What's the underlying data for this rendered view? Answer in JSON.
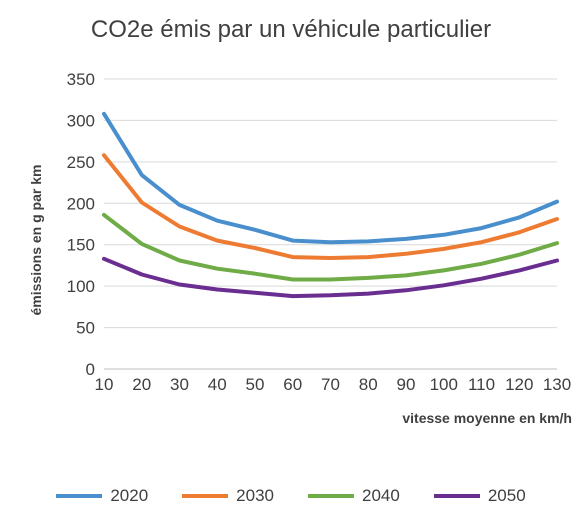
{
  "chart_data": {
    "type": "line",
    "title": "CO2e émis par un véhicule particulier",
    "xlabel": "vitesse moyenne en km/h",
    "ylabel": "émissions en g par km",
    "x": [
      10,
      20,
      30,
      40,
      50,
      60,
      70,
      80,
      90,
      100,
      110,
      120,
      130
    ],
    "xlim": [
      10,
      130
    ],
    "ylim": [
      0,
      350
    ],
    "yticks": [
      0,
      50,
      100,
      150,
      200,
      250,
      300,
      350
    ],
    "grid": true,
    "legend_position": "bottom",
    "series": [
      {
        "name": "2020",
        "color": "#4a8fcd",
        "values": [
          308,
          234,
          198,
          179,
          168,
          155,
          153,
          154,
          157,
          162,
          170,
          183,
          202
        ]
      },
      {
        "name": "2030",
        "color": "#ee7b32",
        "values": [
          258,
          201,
          172,
          155,
          146,
          135,
          134,
          135,
          139,
          145,
          153,
          165,
          181
        ]
      },
      {
        "name": "2040",
        "color": "#6fac47",
        "values": [
          186,
          151,
          131,
          121,
          115,
          108,
          108,
          110,
          113,
          119,
          127,
          138,
          152
        ]
      },
      {
        "name": "2050",
        "color": "#6a2e91",
        "values": [
          133,
          114,
          102,
          96,
          92,
          88,
          89,
          91,
          95,
          101,
          109,
          119,
          131
        ]
      }
    ]
  }
}
